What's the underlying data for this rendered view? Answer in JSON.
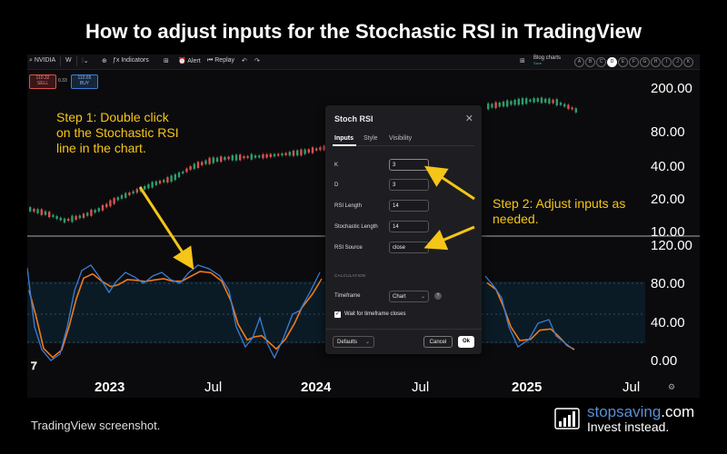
{
  "title": "How to adjust inputs for the Stochastic RSI in TradingView",
  "toolbar": {
    "symbol": "NVIDIA",
    "interval": "W",
    "indicators": "Indicators",
    "alert": "Alert",
    "replay": "Replay",
    "layout_name": "Blog charts",
    "layout_sub": "Save",
    "circles": [
      "A",
      "B",
      "C",
      "D",
      "E",
      "F",
      "G",
      "H",
      "I",
      "J",
      "K"
    ]
  },
  "price_boxes": {
    "sell_price": "110.32",
    "sell_label": "SELL",
    "spread": "0.33",
    "buy_price": "110.65",
    "buy_label": "BUY"
  },
  "price_axis": [
    "200.00",
    "80.00",
    "40.00",
    "20.00",
    "10.00"
  ],
  "stoch_axis": [
    "120.00",
    "80.00",
    "40.00",
    "0.00"
  ],
  "time_axis": [
    "2023",
    "Jul",
    "2024",
    "Jul",
    "2025",
    "Jul"
  ],
  "step1": {
    "lead": "Step 1",
    "text": ": Double click on the Stochastic RSI line in the chart."
  },
  "step2": {
    "lead": "Step 2",
    "text": ": Adjust inputs as needed."
  },
  "dialog": {
    "title": "Stoch RSI",
    "tabs": [
      "Inputs",
      "Style",
      "Visibility"
    ],
    "fields": [
      {
        "label": "K",
        "value": "3"
      },
      {
        "label": "D",
        "value": "3"
      },
      {
        "label": "RSI Length",
        "value": "14"
      },
      {
        "label": "Stochastic Length",
        "value": "14"
      },
      {
        "label": "RSI Source",
        "value": "close"
      }
    ],
    "section": "CALCULATION",
    "timeframe_label": "Timeframe",
    "timeframe_value": "Chart",
    "wait_label": "Wait for timeframe closes",
    "defaults": "Defaults",
    "cancel": "Cancel",
    "ok": "Ok"
  },
  "caption": "TradingView screenshot.",
  "brand": {
    "name_a": "stopsaving",
    "name_b": ".com",
    "tagline": "Invest instead."
  },
  "colors": {
    "k_line": "#3b7dd8",
    "d_line": "#f07a1a",
    "up": "#2e9e6e",
    "down": "#d9534f",
    "annotation": "#f5c518"
  }
}
